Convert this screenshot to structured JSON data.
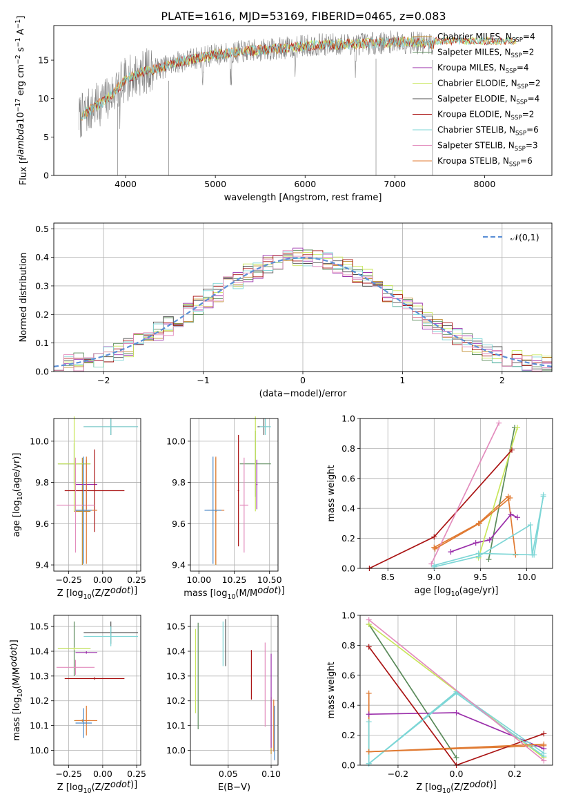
{
  "figure_title": "PLATE=1616, MJD=53169, FIBERID=0465, z=0.083",
  "colors": {
    "grid": "#b0b0b0",
    "gaussian": "#5b8fd6",
    "data_grey": "#808080",
    "palette": [
      "#c08a2c",
      "#5a8a5a",
      "#9a2eaa",
      "#c8e65a",
      "#505050",
      "#aa1414",
      "#7dd6d6",
      "#e38cbd",
      "#e07a32",
      "#4b8bcb"
    ]
  },
  "legend_labels": [
    "Chabrier MILES, N$_{SSP}$=4",
    "Salpeter MILES, N$_{SSP}$=2",
    "Kroupa MILES, N$_{SSP}$=4",
    "Chabrier ELODIE, N$_{SSP}$=2",
    "Salpeter ELODIE, N$_{SSP}$=4",
    "Kroupa ELODIE, N$_{SSP}$=2",
    "Chabrier STELIB, N$_{SSP}$=6",
    "Salpeter STELIB, N$_{SSP}$=3",
    "Kroupa STELIB, N$_{SSP}$=6"
  ],
  "chart_data": [
    {
      "id": "spectrum",
      "type": "line",
      "xlabel": "wavelength [Angstrom, rest frame]",
      "ylabel": "Flux [f$_\\lambda$10$^{-17}$ erg cm$^{-2}$ s$^{-1}$ A$^{-1}$]",
      "xlim": [
        3200,
        8750
      ],
      "ylim": [
        0,
        19.5
      ],
      "xticks": [
        4000,
        5000,
        6000,
        7000,
        8000
      ],
      "yticks": [
        0,
        5,
        10,
        15
      ],
      "grid": false,
      "legend": "right",
      "continuum": {
        "x": [
          3480,
          3600,
          3800,
          4000,
          4200,
          4400,
          4600,
          4800,
          5000,
          5200,
          5500,
          5800,
          6000,
          6200,
          6500,
          6800,
          7000,
          7200,
          7430
        ],
        "y": [
          7.5,
          8.5,
          10.0,
          12.5,
          13.5,
          14.0,
          14.8,
          15.3,
          15.7,
          16.0,
          16.3,
          16.6,
          16.9,
          17.0,
          17.1,
          17.2,
          17.4,
          17.3,
          17.0
        ]
      },
      "models_continue_to": 8350,
      "model_tail_y": 17.5
    },
    {
      "id": "residuals",
      "type": "area",
      "xlabel": "(data-model)/error",
      "ylabel": "Normed distribution",
      "xlim": [
        -2.5,
        2.5
      ],
      "ylim": [
        0,
        0.52
      ],
      "xticks": [
        -2,
        -1,
        0,
        1,
        2
      ],
      "yticks": [
        0.0,
        0.1,
        0.2,
        0.3,
        0.4,
        0.5
      ],
      "bin_width": 0.1,
      "gaussian_label": "$\\mathcal{N}(0,1)$",
      "legend": "top-right",
      "grid": true
    },
    {
      "id": "age-vs-Z",
      "type": "scatter",
      "xlabel": "Z [log$_{10}$(Z/Z$_\\odot$)]",
      "ylabel": "age  [log$_{10}$(age/yr)]",
      "xlim": [
        -0.36,
        0.28
      ],
      "ylim": [
        9.37,
        10.11
      ],
      "xticks": [
        -0.25,
        0.0,
        0.25
      ],
      "ytick_values": [
        9.4,
        9.6,
        9.8,
        10.0
      ],
      "grid": true,
      "points": [
        {
          "x": -0.15,
          "xerr": 0.06,
          "y": 9.66,
          "yerr": 0.26
        },
        {
          "x": -0.21,
          "xerr": 0.12,
          "y": 9.89,
          "yerr": 0.1
        },
        {
          "x": -0.12,
          "xerr": 0.08,
          "y": 9.79,
          "yerr": 0.12
        },
        {
          "x": -0.21,
          "xerr": 0.12,
          "y": 9.89,
          "yerr": 0.23
        },
        {
          "x": 0.06,
          "xerr": 0.2,
          "y": 10.07,
          "yerr": 0.04
        },
        {
          "x": -0.06,
          "xerr": 0.22,
          "y": 9.76,
          "yerr": 0.2
        },
        {
          "x": 0.06,
          "xerr": 0.2,
          "y": 10.07,
          "yerr": 0.04
        },
        {
          "x": -0.2,
          "xerr": 0.14,
          "y": 9.69,
          "yerr": 0.23
        },
        {
          "x": -0.12,
          "xerr": 0.08,
          "y": 9.665,
          "yerr": 0.26
        },
        {
          "x": -0.14,
          "xerr": 0.06,
          "y": 9.665,
          "yerr": 0.26
        }
      ]
    },
    {
      "id": "age-vs-mass",
      "type": "scatter",
      "xlabel": "mass [log$_{10}$(M/M$_\\odot$)]",
      "ylabel": "",
      "xlim": [
        9.94,
        10.56
      ],
      "ylim": [
        9.37,
        10.11
      ],
      "xticks": [
        10.0,
        10.25,
        10.5
      ],
      "ytick_values": [
        9.4,
        9.6,
        9.8,
        10.0
      ],
      "grid": true,
      "points": [
        {
          "x": 10.12,
          "xerr": 0.005,
          "y": 9.66,
          "yerr": 0.26
        },
        {
          "x": 10.4,
          "xerr": 0.11,
          "y": 9.89,
          "yerr": 0.16
        },
        {
          "x": 10.41,
          "xerr": 0.005,
          "y": 9.79,
          "yerr": 0.12
        },
        {
          "x": 10.4,
          "xerr": 0.005,
          "y": 9.89,
          "yerr": 0.23
        },
        {
          "x": 10.46,
          "xerr": 0.045,
          "y": 10.07,
          "yerr": 0.04
        },
        {
          "x": 10.28,
          "xerr": 0.005,
          "y": 9.76,
          "yerr": 0.27
        },
        {
          "x": 10.47,
          "xerr": 0.04,
          "y": 10.07,
          "yerr": 0.04
        },
        {
          "x": 10.32,
          "xerr": 0.03,
          "y": 9.69,
          "yerr": 0.23
        },
        {
          "x": 10.12,
          "xerr": 0.06,
          "y": 9.665,
          "yerr": 0.26
        },
        {
          "x": 10.1,
          "xerr": 0.06,
          "y": 9.665,
          "yerr": 0.26
        }
      ]
    },
    {
      "id": "weights-vs-age",
      "type": "line",
      "xlabel": "age  [log$_{10}$(age/yr)]",
      "ylabel": "mass weight",
      "xlim": [
        8.2,
        10.28
      ],
      "ylim": [
        0,
        1.0
      ],
      "xticks": [
        8.5,
        9.0,
        9.5,
        10.0
      ],
      "yticks": [
        0.0,
        0.2,
        0.4,
        0.6,
        0.8,
        1.0
      ],
      "grid": true,
      "series": [
        {
          "x": [
            9.0,
            9.48,
            9.8,
            9.88
          ],
          "y": [
            0.14,
            0.3,
            0.48,
            0.09
          ]
        },
        {
          "x": [
            9.59,
            9.87
          ],
          "y": [
            0.06,
            0.94
          ]
        },
        {
          "x": [
            9.18,
            9.45,
            9.6,
            9.83,
            9.9
          ],
          "y": [
            0.11,
            0.17,
            0.19,
            0.36,
            0.34
          ]
        },
        {
          "x": [
            9.48,
            9.9
          ],
          "y": [
            0.07,
            0.94
          ]
        },
        {
          "x": [
            9.0,
            9.48,
            10.08,
            10.18
          ],
          "y": [
            0.02,
            0.1,
            0.09,
            0.49
          ]
        },
        {
          "x": [
            8.3,
            9.0,
            9.84
          ],
          "y": [
            0.0,
            0.21,
            0.79
          ]
        },
        {
          "x": [
            9.0,
            9.48,
            10.04,
            10.06,
            10.18
          ],
          "y": [
            0.01,
            0.08,
            0.29,
            0.09,
            0.48
          ]
        },
        {
          "x": [
            8.97,
            9.7
          ],
          "y": [
            0.03,
            0.97
          ]
        },
        {
          "x": [
            9.01,
            9.49,
            9.82
          ],
          "y": [
            0.13,
            0.3,
            0.47
          ]
        }
      ]
    },
    {
      "id": "mass-vs-Z",
      "type": "scatter",
      "xlabel": "Z [log$_{10}$(Z/Z$_\\odot$)]",
      "ylabel": "mass [log$_{10}$(M/M$_\\odot$)]",
      "xlim": [
        -0.36,
        0.28
      ],
      "ylim": [
        9.94,
        10.545
      ],
      "xticks": [
        -0.25,
        0.0,
        0.25
      ],
      "ytick_values": [
        10.0,
        10.1,
        10.2,
        10.3,
        10.4,
        10.5
      ],
      "grid": true,
      "points": [
        {
          "x": -0.15,
          "xerr": 0.06,
          "y": 10.12,
          "yerr": 0.005
        },
        {
          "x": -0.21,
          "xerr": 0.12,
          "y": 10.41,
          "yerr": 0.11
        },
        {
          "x": -0.12,
          "xerr": 0.08,
          "y": 10.395,
          "yerr": 0.005
        },
        {
          "x": -0.21,
          "xerr": 0.12,
          "y": 10.41,
          "yerr": 0.005
        },
        {
          "x": 0.06,
          "xerr": 0.2,
          "y": 10.475,
          "yerr": 0.045
        },
        {
          "x": -0.06,
          "xerr": 0.22,
          "y": 10.29,
          "yerr": 0.005
        },
        {
          "x": 0.06,
          "xerr": 0.2,
          "y": 10.46,
          "yerr": 0.04
        },
        {
          "x": -0.2,
          "xerr": 0.14,
          "y": 10.335,
          "yerr": 0.03
        },
        {
          "x": -0.12,
          "xerr": 0.08,
          "y": 10.12,
          "yerr": 0.06
        },
        {
          "x": -0.14,
          "xerr": 0.06,
          "y": 10.11,
          "yerr": 0.06
        }
      ]
    },
    {
      "id": "mass-vs-EBV",
      "type": "scatter",
      "xlabel": "E(B-V)",
      "ylabel": "",
      "xlim": [
        0.006,
        0.108
      ],
      "ylim": [
        9.94,
        10.545
      ],
      "xticks": [
        0.05,
        0.1
      ],
      "ytick_values": [
        10.0,
        10.1,
        10.2,
        10.3,
        10.4,
        10.5
      ],
      "grid": true,
      "points": [
        {
          "x": 0.1,
          "y": 10.1,
          "yerr": 0.115
        },
        {
          "x": 0.015,
          "y": 10.3,
          "yerr": 0.215
        },
        {
          "x": 0.1,
          "y": 10.2,
          "yerr": 0.19
        },
        {
          "x": 0.012,
          "y": 10.32,
          "yerr": 0.17
        },
        {
          "x": 0.047,
          "y": 10.435,
          "yerr": 0.095
        },
        {
          "x": 0.077,
          "y": 10.305,
          "yerr": 0.1
        },
        {
          "x": 0.044,
          "y": 10.43,
          "yerr": 0.09
        },
        {
          "x": 0.093,
          "y": 10.265,
          "yerr": 0.17
        },
        {
          "x": 0.103,
          "y": 10.1,
          "yerr": 0.105
        },
        {
          "x": 0.104,
          "y": 10.07,
          "yerr": 0.11
        }
      ]
    },
    {
      "id": "weights-vs-Z",
      "type": "line",
      "xlabel": "Z [log$_{10}$(Z/Z$_\\odot$)]",
      "ylabel": "mass weight",
      "xlim": [
        -0.33,
        0.33
      ],
      "ylim": [
        0,
        1.0
      ],
      "xticks": [
        -0.2,
        0.0,
        0.2
      ],
      "yticks": [
        0.0,
        0.2,
        0.4,
        0.6,
        0.8,
        1.0
      ],
      "grid": true,
      "series": [
        {
          "x": [
            -0.3,
            -0.3,
            0.3
          ],
          "y": [
            0.48,
            0.09,
            0.13
          ]
        },
        {
          "x": [
            -0.3,
            0.0
          ],
          "y": [
            0.94,
            0.05
          ]
        },
        {
          "x": [
            -0.3,
            0.0,
            0.3
          ],
          "y": [
            0.34,
            0.35,
            0.11
          ]
        },
        {
          "x": [
            -0.3,
            0.3
          ],
          "y": [
            0.94,
            0.05
          ]
        },
        {
          "x": [
            -0.3,
            0.0,
            0.3
          ],
          "y": [
            0.01,
            0.49,
            0.08
          ]
        },
        {
          "x": [
            -0.3,
            0.0,
            0.3
          ],
          "y": [
            0.79,
            0.0,
            0.21
          ]
        },
        {
          "x": [
            -0.3,
            -0.3,
            0.0,
            0.3
          ],
          "y": [
            0.29,
            0.01,
            0.48,
            0.06
          ]
        },
        {
          "x": [
            -0.3,
            0.3
          ],
          "y": [
            0.97,
            0.03
          ]
        },
        {
          "x": [
            -0.3,
            0.3
          ],
          "y": [
            0.09,
            0.14
          ]
        }
      ]
    }
  ]
}
